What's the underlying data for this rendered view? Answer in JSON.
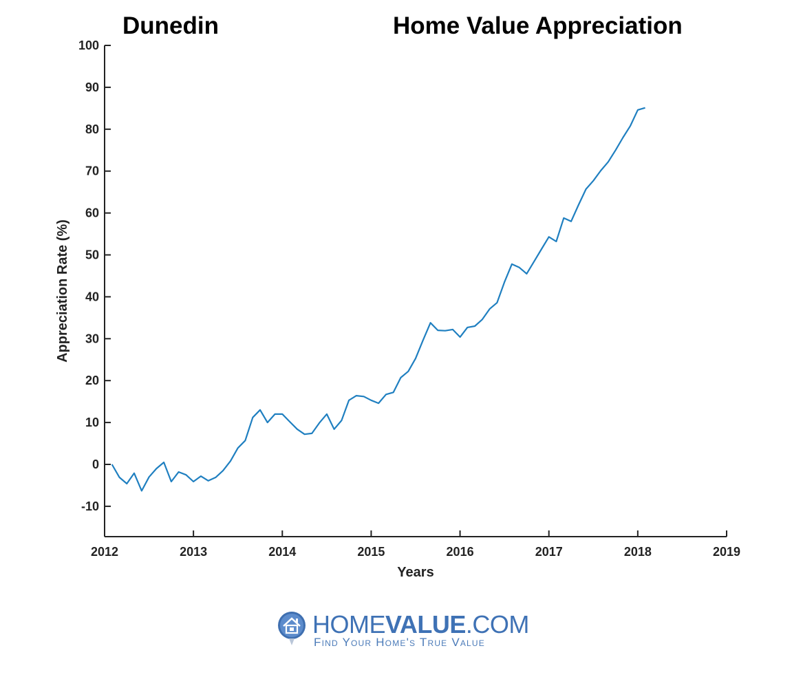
{
  "header": {
    "location": "Dunedin",
    "title": "Home Value Appreciation"
  },
  "chart_data": {
    "type": "line",
    "title": "Home Value Appreciation",
    "subtitle": "Dunedin",
    "xlabel": "Years",
    "ylabel": "Appreciation Rate (%)",
    "xlim": [
      2012,
      2019
    ],
    "ylim": [
      -17,
      100
    ],
    "x_ticks": [
      2012,
      2013,
      2014,
      2015,
      2016,
      2017,
      2018,
      2019
    ],
    "y_ticks": [
      -10,
      0,
      10,
      20,
      30,
      40,
      50,
      60,
      70,
      80,
      90,
      100
    ],
    "grid": false,
    "legend": null,
    "line_color": "#1f7fc0",
    "series": [
      {
        "name": "Dunedin",
        "x": [
          2012.083,
          2012.167,
          2012.25,
          2012.333,
          2012.417,
          2012.5,
          2012.583,
          2012.667,
          2012.75,
          2012.833,
          2012.917,
          2013.0,
          2013.083,
          2013.167,
          2013.25,
          2013.333,
          2013.417,
          2013.5,
          2013.583,
          2013.667,
          2013.75,
          2013.833,
          2013.917,
          2014.0,
          2014.083,
          2014.167,
          2014.25,
          2014.333,
          2014.417,
          2014.5,
          2014.583,
          2014.667,
          2014.75,
          2014.833,
          2014.917,
          2015.0,
          2015.083,
          2015.167,
          2015.25,
          2015.333,
          2015.417,
          2015.5,
          2015.583,
          2015.667,
          2015.75,
          2015.833,
          2015.917,
          2016.0,
          2016.083,
          2016.167,
          2016.25,
          2016.333,
          2016.417,
          2016.5,
          2016.583,
          2016.667,
          2016.75,
          2016.833,
          2016.917,
          2017.0,
          2017.083,
          2017.167,
          2017.25,
          2017.333,
          2017.417,
          2017.5,
          2017.583,
          2017.667,
          2017.75,
          2017.833,
          2017.917,
          2018.0,
          2018.083
        ],
        "values": [
          0,
          -3.1,
          -4.6,
          -2.1,
          -6.3,
          -3.0,
          -1.0,
          0.5,
          -4.1,
          -1.8,
          -2.5,
          -4.1,
          -2.8,
          -3.9,
          -3.1,
          -1.5,
          0.8,
          3.9,
          5.7,
          11.2,
          13.0,
          10.0,
          12.0,
          12.0,
          10.2,
          8.4,
          7.2,
          7.4,
          9.9,
          12.0,
          8.4,
          10.5,
          15.3,
          16.4,
          16.2,
          15.3,
          14.6,
          16.7,
          17.2,
          20.7,
          22.2,
          25.3,
          29.6,
          33.8,
          32.0,
          31.9,
          32.2,
          30.4,
          32.7,
          33.0,
          34.6,
          37.1,
          38.6,
          43.5,
          47.8,
          47.0,
          45.5,
          48.4,
          51.4,
          54.3,
          53.2,
          58.8,
          58.0,
          61.9,
          65.7,
          67.7,
          70.1,
          72.2,
          75.0,
          78.0,
          80.8,
          84.6,
          85.1
        ]
      }
    ]
  },
  "logo": {
    "brand_light": "HOME",
    "brand_bold": "VALUE",
    "brand_suffix": ".COM",
    "tagline": "Find Your Home's True Value",
    "color": "#3f72b5"
  }
}
